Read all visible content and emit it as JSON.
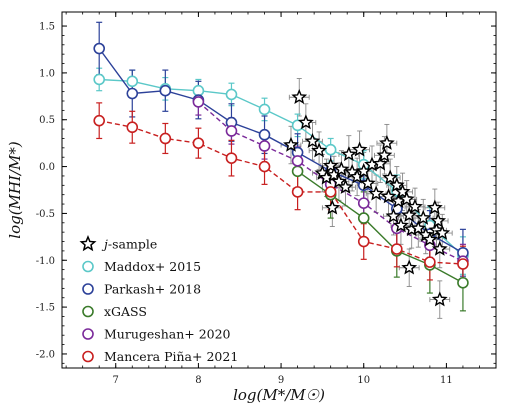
{
  "chart_data": {
    "type": "line",
    "title": "",
    "xlabel": "log(M*/M☉)",
    "ylabel": "log(MHI/M*)",
    "xlim": [
      6.35,
      11.6
    ],
    "ylim": [
      -2.15,
      1.65
    ],
    "xticks": [
      7,
      8,
      9,
      10,
      11
    ],
    "yticks": [
      -2.0,
      -1.5,
      -1.0,
      -0.5,
      0.0,
      0.5,
      1.0,
      1.5
    ],
    "grid": false,
    "legend_position": "bottom-left",
    "legend": [
      "j-sample",
      "Maddox+ 2015",
      "Parkash+ 2018",
      "xGASS",
      "Murugeshan+ 2020",
      "Mancera Piña+ 2021"
    ],
    "series": [
      {
        "name": "Maddox+ 2015",
        "color": "#5bc8c8",
        "linestyle": "solid",
        "x": [
          6.8,
          7.2,
          7.6,
          8.0,
          8.4,
          8.8,
          9.2,
          9.6,
          10.0,
          10.4,
          10.8,
          11.2
        ],
        "y": [
          0.93,
          0.91,
          0.83,
          0.81,
          0.77,
          0.61,
          0.44,
          0.18,
          0.02,
          -0.26,
          -0.63,
          -0.95
        ],
        "yerr": [
          0.12,
          0.12,
          0.12,
          0.12,
          0.12,
          0.12,
          0.12,
          0.12,
          0.15,
          0.17,
          0.2,
          0.2
        ]
      },
      {
        "name": "Parkash+ 2018",
        "color": "#2c4199",
        "linestyle": "solid",
        "x": [
          6.8,
          7.2,
          7.6,
          8.0,
          8.4,
          8.8,
          9.2,
          9.6,
          10.0,
          10.4,
          10.8,
          11.2
        ],
        "y": [
          1.26,
          0.78,
          0.81,
          0.71,
          0.47,
          0.34,
          0.15,
          -0.05,
          -0.2,
          -0.45,
          -0.72,
          -0.92
        ],
        "yerr": [
          0.28,
          0.25,
          0.22,
          0.2,
          0.2,
          0.2,
          0.2,
          0.2,
          0.2,
          0.25,
          0.25,
          0.25
        ]
      },
      {
        "name": "xGASS",
        "color": "#3b7b2b",
        "linestyle": "solid",
        "x": [
          9.2,
          9.6,
          10.0,
          10.4,
          10.8,
          11.2
        ],
        "y": [
          -0.05,
          -0.3,
          -0.55,
          -0.9,
          -1.05,
          -1.24
        ],
        "yerr": [
          0.22,
          0.25,
          0.28,
          0.28,
          0.3,
          0.3
        ]
      },
      {
        "name": "Murugeshan+ 2020",
        "color": "#7b2a9a",
        "linestyle": "dashed",
        "x": [
          8.0,
          8.4,
          8.8,
          9.2,
          9.6,
          10.0,
          10.4,
          10.8,
          11.2
        ],
        "y": [
          0.69,
          0.38,
          0.22,
          0.06,
          -0.19,
          -0.39,
          -0.66,
          -0.84,
          -1.01
        ],
        "yerr": [
          0.14,
          0.14,
          0.14,
          0.15,
          0.16,
          0.17,
          0.18,
          0.18,
          0.18
        ]
      },
      {
        "name": "Mancera Piña+ 2021",
        "color": "#c82020",
        "linestyle": "dashed",
        "x": [
          6.8,
          7.2,
          7.6,
          8.0,
          8.4,
          8.8,
          9.2,
          9.6,
          10.0,
          10.4,
          10.8,
          11.2
        ],
        "y": [
          0.49,
          0.42,
          0.3,
          0.25,
          0.09,
          0.0,
          -0.27,
          -0.27,
          -0.8,
          -0.88,
          -1.02,
          -1.04
        ],
        "yerr": [
          0.19,
          0.17,
          0.16,
          0.16,
          0.19,
          0.19,
          0.19,
          0.19,
          0.19,
          0.19,
          0.19,
          0.19
        ]
      }
    ],
    "scatter": {
      "name": "j-sample",
      "marker": "star",
      "points": [
        [
          9.22,
          0.74
        ],
        [
          9.3,
          0.47
        ],
        [
          9.12,
          0.23
        ],
        [
          9.38,
          0.27
        ],
        [
          9.46,
          0.17
        ],
        [
          9.5,
          -0.07
        ],
        [
          9.55,
          -0.12
        ],
        [
          9.6,
          0.01
        ],
        [
          9.64,
          -0.09
        ],
        [
          9.7,
          -0.16
        ],
        [
          9.73,
          -0.03
        ],
        [
          9.78,
          -0.22
        ],
        [
          9.82,
          0.13
        ],
        [
          9.86,
          -0.06
        ],
        [
          9.92,
          -0.11
        ],
        [
          9.95,
          0.18
        ],
        [
          10.0,
          -0.05
        ],
        [
          10.05,
          -0.18
        ],
        [
          10.1,
          0.02
        ],
        [
          10.15,
          -0.29
        ],
        [
          10.2,
          0.03
        ],
        [
          10.25,
          0.12
        ],
        [
          10.28,
          0.25
        ],
        [
          10.32,
          -0.12
        ],
        [
          10.36,
          -0.53
        ],
        [
          10.4,
          -0.2
        ],
        [
          10.42,
          -0.37
        ],
        [
          10.45,
          -0.63
        ],
        [
          10.47,
          -0.27
        ],
        [
          10.52,
          -0.35
        ],
        [
          10.55,
          -0.52
        ],
        [
          10.58,
          -0.67
        ],
        [
          10.62,
          -0.43
        ],
        [
          10.66,
          -0.66
        ],
        [
          10.72,
          -0.55
        ],
        [
          10.75,
          -0.73
        ],
        [
          10.8,
          -0.78
        ],
        [
          10.86,
          -0.44
        ],
        [
          10.88,
          -0.68
        ],
        [
          10.9,
          -0.58
        ],
        [
          10.92,
          -0.88
        ],
        [
          10.95,
          -0.71
        ],
        [
          10.92,
          -1.42
        ],
        [
          10.55,
          -1.08
        ],
        [
          9.62,
          -0.44
        ],
        [
          10.3,
          -0.32
        ]
      ]
    }
  }
}
